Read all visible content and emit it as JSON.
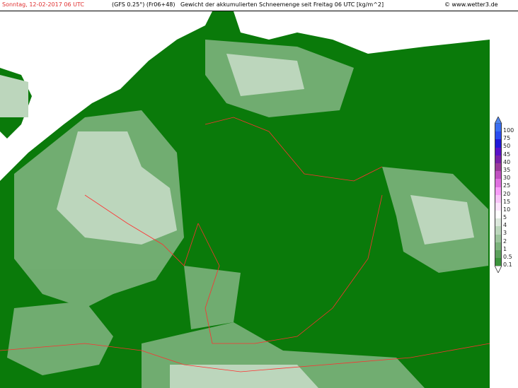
{
  "header": {
    "date": "Sonntag, 12-02-2017  06 UTC",
    "model": "(GFS 0.25°) (Fr06+48)",
    "title": "Gewicht der akkumulierten Schneemenge seit Freitag 06 UTC [kg/m^2]",
    "credit": "© www.wetter3.de",
    "date_color": "#e03030"
  },
  "map": {
    "background": "#0a7a0a",
    "sea": "#ffffff",
    "border_color": "#ff3030"
  },
  "legend": {
    "top_arrow_color": "#4f86f0",
    "bottom_arrow_color": "#ffffff",
    "levels": [
      {
        "label": "100",
        "color": "#3a6ef2"
      },
      {
        "label": "75",
        "color": "#2a4cf0"
      },
      {
        "label": "50",
        "color": "#2018d8"
      },
      {
        "label": "45",
        "color": "#5a10c8"
      },
      {
        "label": "40",
        "color": "#7a20a8"
      },
      {
        "label": "35",
        "color": "#9a3a9a"
      },
      {
        "label": "30",
        "color": "#c050c0"
      },
      {
        "label": "25",
        "color": "#e070e0"
      },
      {
        "label": "20",
        "color": "#f89cf8"
      },
      {
        "label": "15",
        "color": "#f8c4f8"
      },
      {
        "label": "10",
        "color": "#fce4fc"
      },
      {
        "label": "5",
        "color": "#ffffff"
      },
      {
        "label": "4",
        "color": "#dce8dc"
      },
      {
        "label": "3",
        "color": "#bcd6bc"
      },
      {
        "label": "2",
        "color": "#9cc49c"
      },
      {
        "label": "1",
        "color": "#7cb27c"
      },
      {
        "label": "0.5",
        "color": "#5ca05c"
      },
      {
        "label": "0.1",
        "color": "#3c943c"
      }
    ]
  }
}
